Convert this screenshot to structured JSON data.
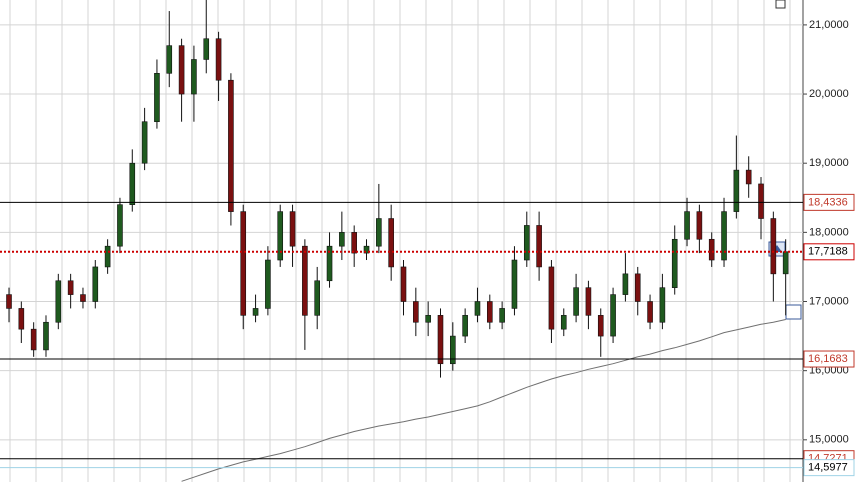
{
  "chart_data": {
    "type": "candlestick",
    "ylim": [
      14.39,
      21.36
    ],
    "yticks": [
      {
        "value": 15,
        "label": "15,0000"
      },
      {
        "value": 16,
        "label": "16,0000"
      },
      {
        "value": 17,
        "label": "17,0000"
      },
      {
        "value": 18,
        "label": "18,0000"
      },
      {
        "value": 19,
        "label": "19,0000"
      },
      {
        "value": 20,
        "label": "20,0000"
      },
      {
        "value": 21,
        "label": "21,0000"
      }
    ],
    "grid": true,
    "up_color": "#1f5a1f",
    "down_color": "#7a1010",
    "open": [
      17.1,
      16.9,
      16.6,
      16.3,
      16.7,
      17.3,
      17.1,
      17.0,
      17.5,
      17.8,
      18.4,
      19.0,
      19.6,
      20.3,
      20.7,
      20.0,
      20.5,
      20.8,
      20.2,
      18.3,
      16.8,
      16.9,
      17.6,
      18.3,
      17.8,
      16.8,
      17.3,
      17.8,
      18.0,
      17.7,
      17.8,
      18.2,
      17.5,
      17.0,
      16.7,
      16.8,
      16.1,
      16.5,
      16.8,
      17.0,
      16.7,
      16.9,
      17.6,
      18.1,
      17.5,
      16.6,
      16.8,
      17.2,
      16.8,
      16.5,
      17.1,
      17.4,
      17.0,
      16.7,
      17.2,
      17.9,
      18.3,
      17.9,
      17.6,
      18.3,
      18.9,
      18.7,
      18.2,
      17.4
    ],
    "high": [
      17.2,
      17.0,
      16.7,
      16.8,
      17.4,
      17.4,
      17.2,
      17.6,
      17.9,
      18.5,
      19.2,
      19.8,
      20.5,
      21.2,
      20.8,
      20.7,
      21.4,
      20.9,
      20.3,
      18.4,
      17.1,
      17.8,
      18.4,
      18.4,
      17.9,
      17.5,
      18.0,
      18.3,
      18.1,
      17.9,
      18.7,
      18.4,
      17.6,
      17.2,
      17.0,
      16.9,
      16.7,
      16.9,
      17.2,
      17.1,
      17.0,
      17.8,
      18.3,
      18.3,
      17.6,
      16.9,
      17.4,
      17.3,
      16.9,
      17.2,
      17.7,
      17.5,
      17.1,
      17.4,
      18.1,
      18.5,
      18.4,
      18.0,
      18.5,
      19.4,
      19.1,
      18.8,
      18.3,
      17.9
    ],
    "low": [
      16.7,
      16.4,
      16.2,
      16.2,
      16.6,
      16.9,
      16.9,
      16.9,
      17.4,
      17.7,
      18.3,
      18.9,
      19.5,
      20.1,
      19.6,
      19.6,
      20.3,
      19.9,
      18.1,
      16.6,
      16.7,
      16.8,
      17.5,
      17.5,
      16.3,
      16.6,
      17.2,
      17.6,
      17.5,
      17.6,
      17.7,
      17.3,
      16.8,
      16.5,
      16.5,
      15.9,
      16.0,
      16.4,
      16.7,
      16.6,
      16.6,
      16.8,
      17.5,
      17.3,
      16.4,
      16.5,
      16.7,
      16.6,
      16.2,
      16.4,
      17.0,
      16.8,
      16.6,
      16.6,
      17.1,
      17.8,
      17.7,
      17.5,
      17.5,
      18.2,
      18.5,
      17.9,
      17.0,
      16.8
    ],
    "close": [
      16.9,
      16.6,
      16.3,
      16.7,
      17.3,
      17.1,
      17.0,
      17.5,
      17.8,
      18.4,
      19.0,
      19.6,
      20.3,
      20.7,
      20.0,
      20.5,
      20.8,
      20.2,
      18.3,
      16.8,
      16.9,
      17.6,
      18.3,
      17.8,
      16.8,
      17.3,
      17.8,
      18.0,
      17.7,
      17.8,
      18.2,
      17.5,
      17.0,
      16.7,
      16.8,
      16.1,
      16.5,
      16.8,
      17.0,
      16.7,
      16.9,
      17.6,
      18.1,
      17.5,
      16.6,
      16.8,
      17.2,
      16.8,
      16.5,
      17.1,
      17.4,
      17.0,
      16.7,
      17.2,
      17.9,
      18.3,
      17.9,
      17.6,
      18.3,
      18.9,
      18.7,
      18.2,
      17.4,
      17.72
    ],
    "ma": [
      null,
      null,
      null,
      null,
      null,
      null,
      null,
      null,
      null,
      null,
      null,
      null,
      null,
      null,
      14.4,
      14.46,
      14.52,
      14.58,
      14.63,
      14.68,
      14.72,
      14.76,
      14.8,
      14.85,
      14.9,
      14.96,
      15.02,
      15.07,
      15.12,
      15.16,
      15.2,
      15.23,
      15.26,
      15.3,
      15.33,
      15.37,
      15.41,
      15.45,
      15.49,
      15.55,
      15.62,
      15.69,
      15.76,
      15.82,
      15.88,
      15.93,
      15.97,
      16.02,
      16.06,
      16.1,
      16.15,
      16.2,
      16.24,
      16.29,
      16.33,
      16.38,
      16.43,
      16.49,
      16.55,
      16.59,
      16.63,
      16.67,
      16.7,
      16.74
    ],
    "ma_color": "#707070",
    "levels": [
      {
        "value": 18.4336,
        "label": "18,4336",
        "color": "#000000",
        "label_color": "#c0392b",
        "style": "solid"
      },
      {
        "value": 17.7188,
        "label": "17,7188",
        "color": "#cc0000",
        "label_color": "#000000",
        "style": "dotted"
      },
      {
        "value": 16.1683,
        "label": "16,1683",
        "color": "#000000",
        "label_color": "#c0392b",
        "style": "solid"
      },
      {
        "value": 14.7271,
        "label": "14,7271",
        "color": "#000000",
        "label_color": "#c0392b",
        "style": "solid"
      },
      {
        "value": 14.5977,
        "label": "14,5977",
        "color": "#9fd3e6",
        "label_color": "#000000",
        "style": "solid"
      }
    ]
  }
}
